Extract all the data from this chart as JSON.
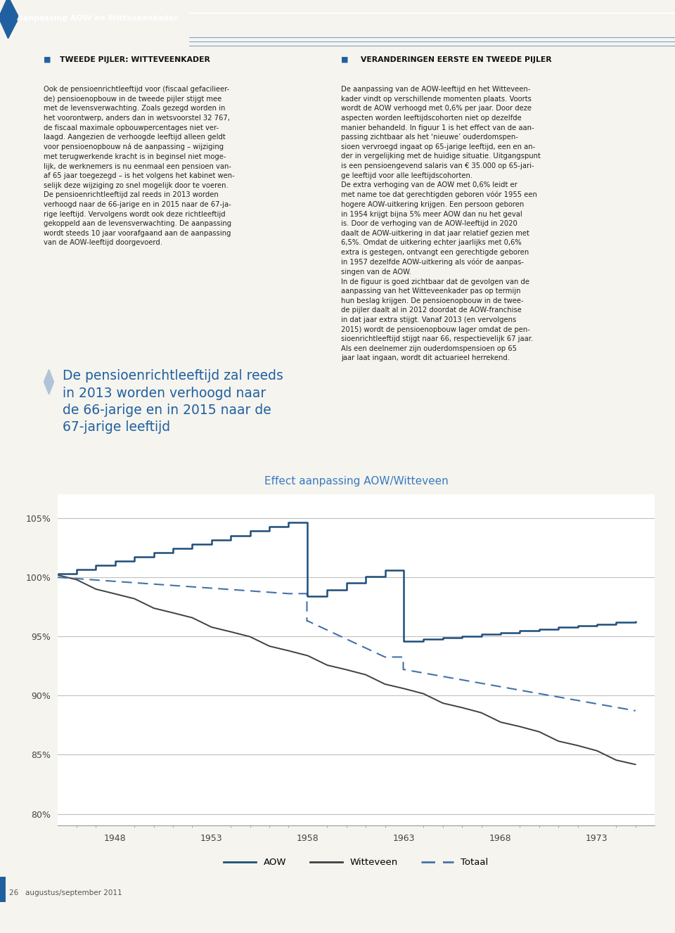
{
  "title": "Effect aanpassing AOW/Witteveen",
  "title_color": "#3a7abf",
  "xlim": [
    1945,
    1976
  ],
  "ylim": [
    79.0,
    107.0
  ],
  "yticks": [
    80,
    85,
    90,
    95,
    100,
    105
  ],
  "xticks": [
    1948,
    1953,
    1958,
    1963,
    1968,
    1973
  ],
  "aow_color": "#1f4e79",
  "witteveen_color": "#404040",
  "totaal_color": "#4472a8",
  "bg_color": "#ffffff",
  "page_bg": "#f5f4ef",
  "header_bg": "#2060a0",
  "header_text": "Aanpassing AOW en Witteveenkader",
  "col1_title": "TWEEDE PIJLER: WITTEVEENKADER",
  "col2_title": "VERANDERINGEN EERSTE EN TWEEDE PIJLER",
  "callout_text": "De pensioenrichtleeftijd zal reeds\nin 2013 worden verhoogd naar\nde 66-jarige en in 2015 naar de\n67-jarige leeftijd",
  "footer_text": "26   augustus/september 2011",
  "col1_body": "Ook de pensioenrichtleeftijd voor (fiscaal gefacilieer-\nde) pensioenopbouw in de tweede pijler stijgt mee\nmet de levensverwachting. Zoals gezegd worden in\nhet voorontwerp, anders dan in wetsvoorstel 32 767,\nde fiscaal maximale opbouwpercentages niet ver-\nlaagd. Aangezien de verhoogde leeftijd alleen geldt\nvoor pensioenopbouw ná de aanpassing – wijziging\nmet terugwerkende kracht is in beginsel niet moge-\nlijk, de werknemers is nu eenmaal een pensioen van-\naf 65 jaar toegezegd – is het volgens het kabinet wen-\nselijk deze wijziging zo snel mogelijk door te voeren.\nDe pensioenrichtleeftijd zal reeds in 2013 worden\nverhoogd naar de 66-jarige en in 2015 naar de 67-ja-\nrige leeftijd. Vervolgens wordt ook deze richtleeftijd\ngekoppeld aan de levensverwachting. De aanpassing\nwordt steeds 10 jaar voorafgaand aan de aanpassing\nvan de AOW-leeftijd doorgevoerd.",
  "col2_body": "De aanpassing van de AOW-leeftijd en het Witteveen-\nkader vindt op verschillende momenten plaats. Voorts\nwordt de AOW verhoogd met 0,6% per jaar. Door deze\naspecten worden leeftijdscohorten niet op dezelfde\nmanier behandeld. In figuur 1 is het effect van de aan-\npassing zichtbaar als het ‘nieuwe’ ouderdomspen-\nsioen vervroegd ingaat op 65-jarige leeftijd, een en an-\nder in vergelijking met de huidige situatie. Uitgangspunt\nis een pensioengevend salaris van € 35.000 op 65-jari-\nge leeftijd voor alle leeftijdscohorten.\nDe extra verhoging van de AOW met 0,6% leidt er\nmet name toe dat gerechtigden geboren vóór 1955 een\nhogere AOW-uitkering krijgen. Een persoon geboren\nin 1954 krijgt bijna 5% meer AOW dan nu het geval\nis. Door de verhoging van de AOW-leeftijd in 2020\ndaalt de AOW-uitkering in dat jaar relatief gezien met\n6,5%. Omdat de uitkering echter jaarlijks met 0,6%\nextra is gestegen, ontvangt een gerechtigde geboren\nin 1957 dezelfde AOW-uitkering als vóór de aanpas-\nsingen van de AOW.\nIn de figuur is goed zichtbaar dat de gevolgen van de\naanpassing van het Witteveenkader pas op termijn\nhun beslag krijgen. De pensioenopbouw in de twee-\nde pijler daalt al in 2012 doordat de AOW-franchise\nin dat jaar extra stijgt. Vanaf 2013 (en vervolgens\n2015) wordt de pensioenopbouw lager omdat de pen-\nsioenrichtleeftijd stijgt naar 66, respectievelijk 67 jaar.\nAls een deelnemer zijn ouderdomspensioen op 65\njaar laat ingaan, wordt dit actuarieel herrekend."
}
